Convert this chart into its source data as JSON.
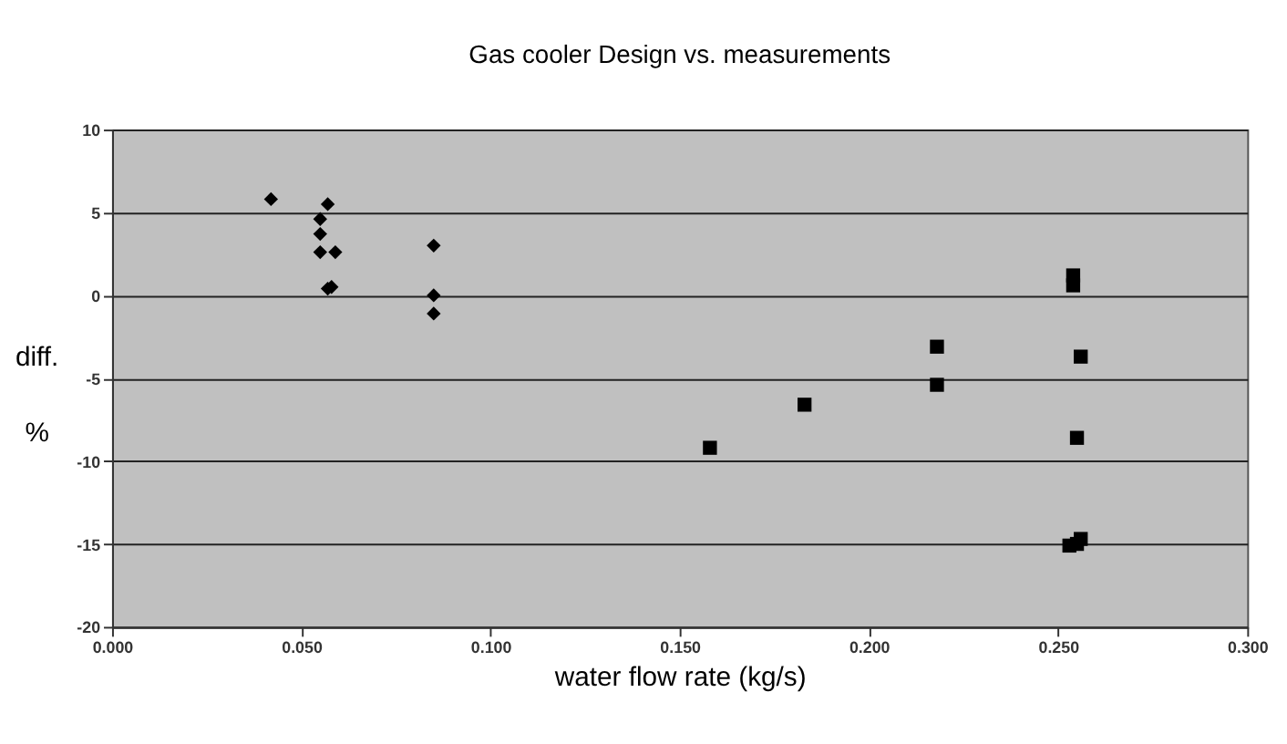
{
  "chart_data": {
    "type": "scatter",
    "title": "Gas cooler Design vs. measurements",
    "xlabel": "water flow rate (kg/s)",
    "ylabel": "diff. %",
    "series": [
      {
        "color": "#000000",
        "marker": "diamond",
        "x": [
          0.042,
          0.057,
          0.055,
          0.055,
          0.055,
          0.059,
          0.058,
          0.057,
          0.085,
          0.085,
          0.085
        ],
        "values": [
          5.8,
          5.5,
          4.6,
          3.7,
          2.6,
          2.6,
          0.5,
          0.4,
          3.0,
          0.0,
          -1.1
        ]
      },
      {
        "color": "#000000",
        "marker": "square",
        "x": [
          0.158,
          0.183,
          0.218,
          0.218,
          0.254,
          0.254,
          0.255,
          0.256,
          0.255,
          0.253,
          0.256,
          0.255
        ],
        "values": [
          -9.2,
          -6.6,
          -3.1,
          -5.4,
          1.2,
          0.6,
          null,
          -3.7,
          -8.6,
          -15.1,
          -14.7,
          -15.0
        ]
      }
    ],
    "xlim": [
      0,
      0.3
    ],
    "xticks": [
      {
        "value": 0,
        "label": "0.000"
      },
      {
        "value": 0.05,
        "label": "0.050"
      },
      {
        "value": 0.1,
        "label": "0.100"
      },
      {
        "value": 0.15,
        "label": "0.150"
      },
      {
        "value": 0.2,
        "label": "0.200"
      },
      {
        "value": 0.25,
        "label": "0.250"
      },
      {
        "value": 0.3,
        "label": "0.300"
      }
    ],
    "ylim": [
      -20,
      10
    ],
    "yticks": [
      -20,
      -15,
      -10,
      -5,
      0,
      5,
      10
    ],
    "grid": "y"
  }
}
